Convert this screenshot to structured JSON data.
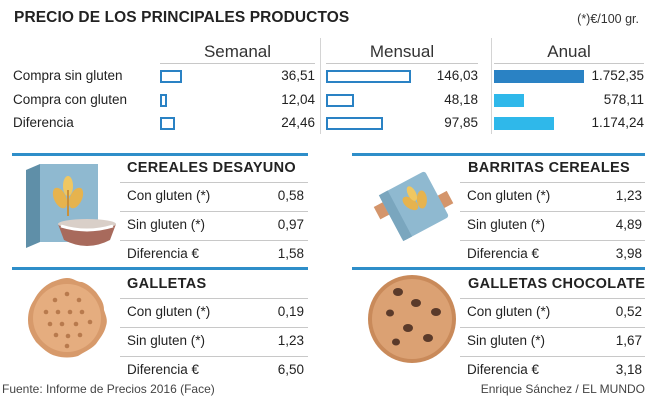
{
  "header": {
    "title": "PRECIO DE LOS PRINCIPALES PRODUCTOS",
    "unit_note": "(*)€/100 gr."
  },
  "chart_data": {
    "type": "bar",
    "categories": [
      "Compra sin gluten",
      "Compra con gluten",
      "Diferencia"
    ],
    "series": [
      {
        "name": "Semanal",
        "values": [
          36.51,
          12.04,
          24.46
        ],
        "labels": [
          "36,51",
          "12,04",
          "24,46"
        ]
      },
      {
        "name": "Mensual",
        "values": [
          146.03,
          48.18,
          97.85
        ],
        "labels": [
          "146,03",
          "48,18",
          "97,85"
        ]
      },
      {
        "name": "Anual",
        "values": [
          1752.35,
          578.11,
          1174.24
        ],
        "labels": [
          "1.752,35",
          "578,11",
          "1.174,24"
        ]
      }
    ],
    "colors": {
      "outline": "#2a82c4",
      "fill_dark": "#2a82c4",
      "fill_light": "#2fb8ea"
    }
  },
  "products": [
    {
      "name": "CEREALES DESAYUNO",
      "icon": "cereal-box-bowl-icon",
      "rows": [
        {
          "label": "Con gluten (*)",
          "value": "0,58"
        },
        {
          "label": "Sin gluten (*)",
          "value": "0,97"
        },
        {
          "label": "Diferencia €",
          "value": "1,58"
        }
      ]
    },
    {
      "name": "BARRITAS CEREALES",
      "icon": "cereal-bar-icon",
      "rows": [
        {
          "label": "Con gluten (*)",
          "value": "1,23"
        },
        {
          "label": "Sin gluten (*)",
          "value": "4,89"
        },
        {
          "label": "Diferencia €",
          "value": "3,98"
        }
      ]
    },
    {
      "name": "GALLETAS",
      "icon": "biscuit-icon",
      "rows": [
        {
          "label": "Con gluten (*)",
          "value": "0,19"
        },
        {
          "label": "Sin gluten (*)",
          "value": "1,23"
        },
        {
          "label": "Diferencia €",
          "value": "6,50"
        }
      ]
    },
    {
      "name": "GALLETAS CHOCOLATE",
      "icon": "chocolate-cookie-icon",
      "rows": [
        {
          "label": "Con gluten (*)",
          "value": "0,52"
        },
        {
          "label": "Sin gluten (*)",
          "value": "1,67"
        },
        {
          "label": "Diferencia €",
          "value": "3,18"
        }
      ]
    }
  ],
  "footer": {
    "source": "Fuente: Informe de Precios 2016 (Face)",
    "credit": "Enrique Sánchez / EL MUNDO"
  }
}
